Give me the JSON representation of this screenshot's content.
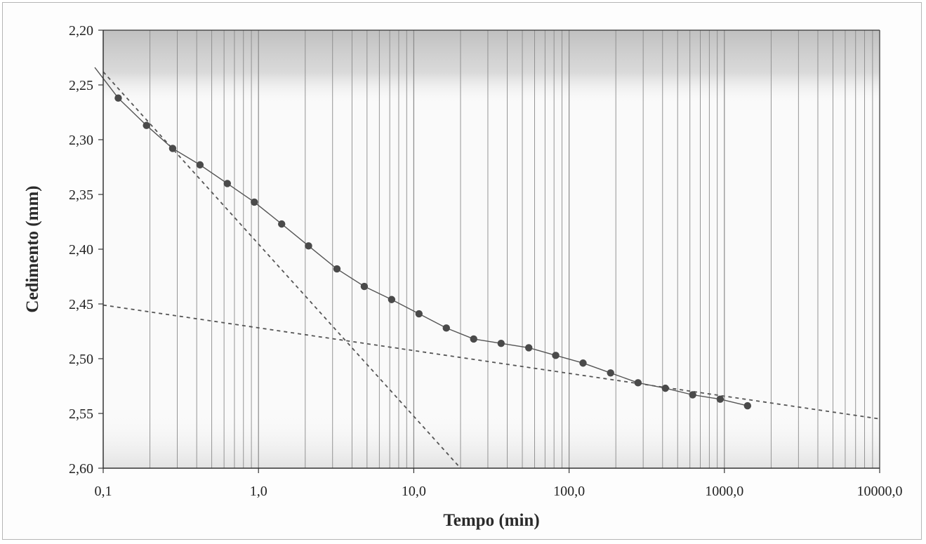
{
  "chart_data": {
    "type": "scatter",
    "xlabel": "Tempo (min)",
    "ylabel": "Cedimento (mm)",
    "x_scale": "log",
    "xlim": [
      0.1,
      10000
    ],
    "ylim": [
      2.2,
      2.6
    ],
    "y_inverted": true,
    "grid": "vertical logarithmic gridlines",
    "x_ticks": [
      "0,1",
      "1,0",
      "10,0",
      "100,0",
      "1000,0",
      "10000,0"
    ],
    "y_ticks": [
      "2,20",
      "2,25",
      "2,30",
      "2,35",
      "2,40",
      "2,45",
      "2,50",
      "2,55",
      "2,60"
    ],
    "series": [
      {
        "style": "markers with line",
        "x": [
          0.125,
          0.19,
          0.28,
          0.42,
          0.63,
          0.94,
          1.41,
          2.1,
          3.2,
          4.8,
          7.2,
          10.8,
          16.2,
          24.3,
          36.5,
          55,
          82,
          123,
          185,
          278,
          417,
          625,
          940,
          1410
        ],
        "y": [
          2.262,
          2.287,
          2.308,
          2.323,
          2.34,
          2.357,
          2.377,
          2.397,
          2.418,
          2.434,
          2.446,
          2.459,
          2.472,
          2.482,
          2.486,
          2.49,
          2.497,
          2.504,
          2.513,
          2.522,
          2.527,
          2.533,
          2.537,
          2.543
        ]
      },
      {
        "style": "dashed",
        "x": [
          0.1,
          20
        ],
        "y": [
          2.238,
          2.6
        ]
      },
      {
        "style": "dashed",
        "x": [
          0.1,
          10000
        ],
        "y": [
          2.451,
          2.555
        ]
      }
    ],
    "colors": {
      "line": "#555555",
      "marker": "#4a4a4a",
      "dashed": "#555555",
      "grid": "#8a8a8a",
      "band": "#bdbdbd"
    }
  }
}
